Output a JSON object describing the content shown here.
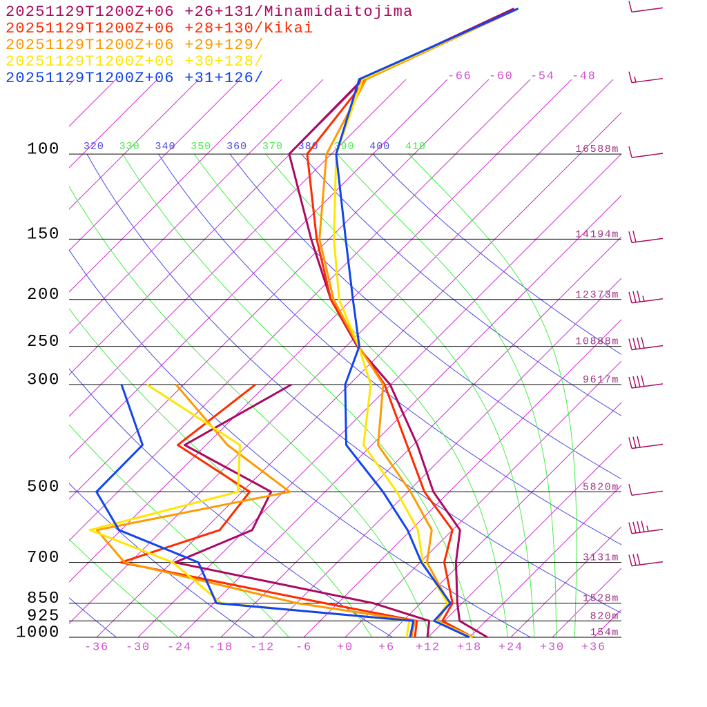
{
  "chart_data": {
    "type": "skewt",
    "ylim": [
      1000,
      48
    ],
    "xlim": [
      -40,
      40
    ],
    "log_scale": true,
    "yticks": [
      100,
      150,
      200,
      250,
      300,
      500,
      700,
      850,
      925,
      1000
    ],
    "height_labels": [
      "16588m",
      "14194m",
      "12373m",
      "10888m",
      "9617m",
      "5820m",
      "3131m",
      "1528m",
      "820m",
      "154m"
    ],
    "xticks": [
      {
        "value": -36,
        "label": "-36"
      },
      {
        "value": -30,
        "label": "-30"
      },
      {
        "value": -24,
        "label": "-24"
      },
      {
        "value": -18,
        "label": "-18"
      },
      {
        "value": -12,
        "label": "-12"
      },
      {
        "value": -6,
        "label": "-6"
      },
      {
        "value": 0,
        "label": "+0"
      },
      {
        "value": 6,
        "label": "+6"
      },
      {
        "value": 12,
        "label": "+12"
      },
      {
        "value": 18,
        "label": "+18"
      },
      {
        "value": 24,
        "label": "+24"
      },
      {
        "value": 30,
        "label": "+30"
      },
      {
        "value": 36,
        "label": "+36"
      }
    ],
    "isotherm_labels": [
      -66,
      -60,
      -54,
      -48
    ],
    "dry_adiabats": [
      320,
      340,
      360,
      380,
      400
    ],
    "moist_adiabats": [
      330,
      350,
      370,
      390,
      410
    ],
    "isotherm_color": "#cc33cc",
    "dry_color": "#4848e8",
    "moist_color": "#44ee44",
    "pressure": [
      1000,
      925,
      850,
      700,
      600,
      500,
      400,
      300,
      250,
      200,
      150,
      100,
      70,
      50
    ],
    "series": [
      {
        "name": "20251129T1200Z+06 +26+131/Minamidaitojima",
        "color": "#aa0a60",
        "temperature": [
          20.6,
          14.2,
          11.3,
          5.2,
          1.1,
          -8.3,
          -17.4,
          -30.1,
          -40.4,
          -51,
          -62.6,
          -78.1,
          -78.3,
          -66.6
        ],
        "dewpoint": [
          11.9,
          9.8,
          -0.9,
          -35.5,
          -29,
          -31.8,
          -51.1,
          -44.4,
          null,
          null,
          null,
          null,
          null,
          null
        ]
      },
      {
        "name": "20251129T1200Z+06 +28+130/Kikai",
        "color": "#ff2a00",
        "temperature": [
          18.5,
          11.7,
          10.6,
          3.5,
          0,
          -9.6,
          -18.9,
          -30.9,
          -40.2,
          -51,
          -61.8,
          -75.5,
          -77.8,
          -66
        ],
        "dewpoint": [
          10.1,
          8,
          -7.9,
          -43.3,
          -33.7,
          -34.9,
          -52.1,
          -49.6,
          null,
          null,
          null,
          null,
          null,
          null
        ]
      },
      {
        "name": "20251129T1200Z+06 +29+129/",
        "color": "#ff9a00",
        "temperature": [
          18.5,
          10.9,
          10.1,
          1,
          -3,
          -11.6,
          -23.1,
          -31.1,
          -40.2,
          -50.6,
          -61.4,
          -72.7,
          -77.8,
          -66
        ],
        "dewpoint": [
          9.6,
          7.7,
          -11.9,
          -42.8,
          -51.5,
          -29.1,
          -44.9,
          -61.1,
          null,
          null,
          null,
          null,
          null,
          null
        ]
      },
      {
        "name": "20251129T1200Z+06 +30+128/",
        "color": "#ffe600",
        "temperature": [
          18.3,
          10.7,
          9.9,
          0.4,
          -5,
          -13.6,
          -25.2,
          -32.9,
          -40.2,
          -49.8,
          -59.3,
          -71.3,
          -78.3,
          -66
        ],
        "dewpoint": [
          8.9,
          6.9,
          -22.9,
          -35.8,
          -52.5,
          -36.6,
          -43.1,
          -65.3,
          null,
          null,
          null,
          null,
          null,
          null
        ]
      },
      {
        "name": "20251129T1200Z+06 +31+126/",
        "color": "#1144ee",
        "temperature": [
          18,
          10.5,
          10.3,
          0.2,
          -6.5,
          -15.6,
          -27.7,
          -36.6,
          -40.1,
          -47.8,
          -57.6,
          -71.3,
          -78.8,
          -66
        ],
        "dewpoint": [
          9.4,
          7.5,
          -23.6,
          -32.1,
          -48.3,
          -57.1,
          -57.2,
          -69,
          null,
          null,
          null,
          null,
          null,
          null
        ]
      }
    ],
    "winds": {
      "color": "#aa0a60",
      "pressure": [
        50,
        70,
        100,
        150,
        200,
        250,
        300,
        400,
        500,
        600,
        700
      ],
      "speed": [
        10,
        15,
        10,
        20,
        35,
        40,
        40,
        30,
        10,
        45,
        30
      ]
    }
  }
}
